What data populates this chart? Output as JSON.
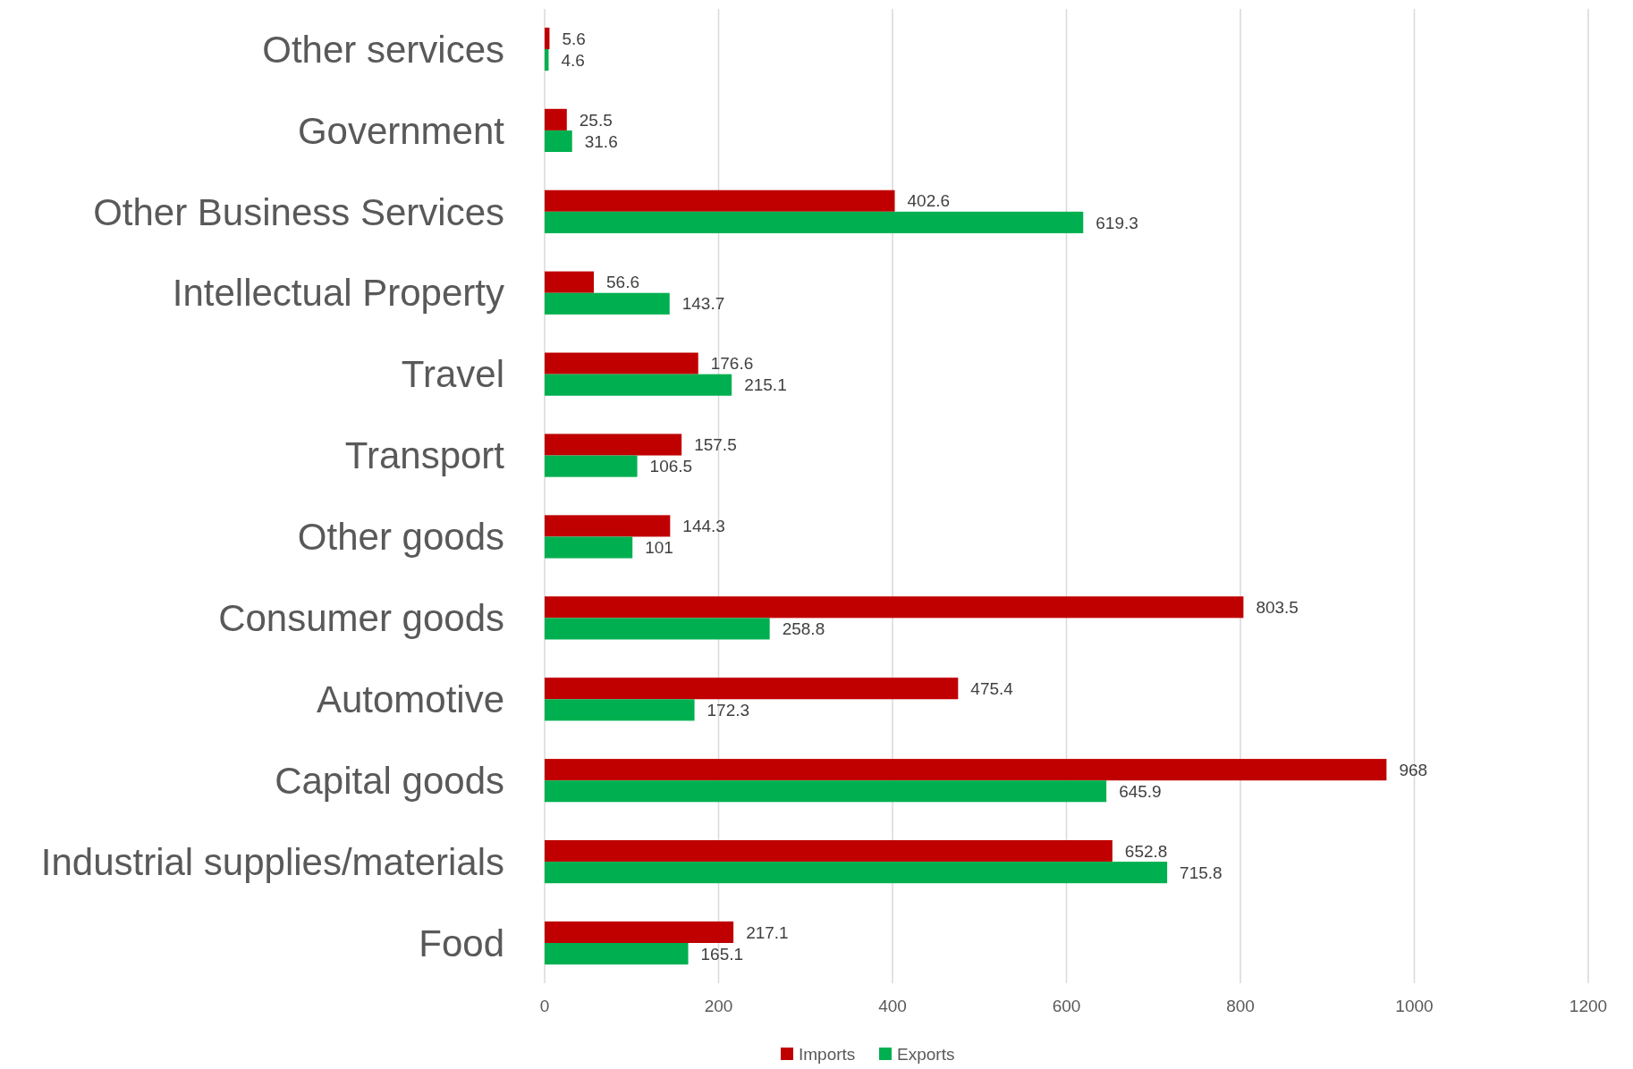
{
  "chart_data": {
    "type": "bar",
    "orientation": "horizontal",
    "categories": [
      "Other services",
      "Government",
      "Other Business Services",
      "Intellectual Property",
      "Travel",
      "Transport",
      "Other goods",
      "Consumer goods",
      "Automotive",
      "Capital goods",
      "Industrial supplies/materials",
      "Food"
    ],
    "series": [
      {
        "name": "Imports",
        "color": "#c00000",
        "values": [
          5.6,
          25.5,
          402.6,
          56.6,
          176.6,
          157.5,
          144.3,
          803.5,
          475.4,
          968,
          652.8,
          217.1
        ]
      },
      {
        "name": "Exports",
        "color": "#00b050",
        "values": [
          4.6,
          31.6,
          619.3,
          143.7,
          215.1,
          106.5,
          101,
          258.8,
          172.3,
          645.9,
          715.8,
          165.1
        ]
      }
    ],
    "xlim": [
      0,
      1200
    ],
    "xticks": [
      0,
      200,
      400,
      600,
      800,
      1000,
      1200
    ],
    "grid": "x",
    "legend": "bottom",
    "data_labels": true
  }
}
